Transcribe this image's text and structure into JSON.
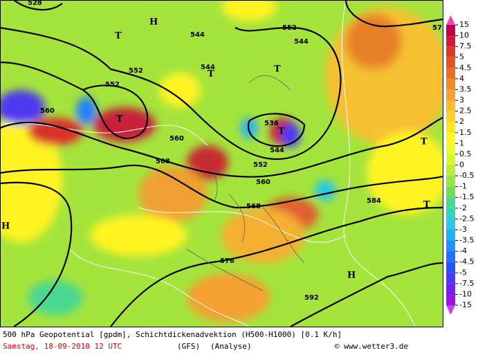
{
  "map": {
    "colorbar": {
      "levels": [
        15,
        10,
        7.5,
        5,
        4.5,
        4,
        3.5,
        3,
        2.5,
        2,
        1.5,
        1,
        0.5,
        0,
        -0.5,
        -1,
        -1.5,
        -2,
        -2.5,
        -3,
        -3.5,
        -4,
        -4.5,
        -5,
        -7.5,
        -10,
        -15
      ],
      "colors": [
        "#c0004a",
        "#d01c38",
        "#dc3828",
        "#e45420",
        "#ea7020",
        "#f08c28",
        "#f5a430",
        "#f9bc30",
        "#fcd028",
        "#ffe420",
        "#fff424",
        "#f0fa28",
        "#d8f630",
        "#b8ee38",
        "#98e440",
        "#70dc58",
        "#48d890",
        "#30d4c0",
        "#28c8e8",
        "#20b0ff",
        "#2090ff",
        "#2070ff",
        "#2850ff",
        "#4838f8",
        "#7020f0",
        "#a010e8"
      ],
      "top_color": "#ff40b0",
      "bottom_color": "#c040f0"
    },
    "contour_labels": [
      "552",
      "552",
      "552",
      "552",
      "544",
      "544",
      "544",
      "544",
      "536",
      "528",
      "560",
      "560",
      "560",
      "568",
      "568",
      "576",
      "584",
      "592",
      "57"
    ],
    "centers": [
      "H",
      "H",
      "H",
      "T",
      "T",
      "T",
      "T",
      "T",
      "T",
      "T"
    ],
    "footer": {
      "caption": "500 hPa Geopotential [gpdm], Schichtdickenadvektion (H500-H1000) [0.1 K/h]",
      "date": "Samstag, 18-09-2010  12 UTC",
      "model": "(GFS)",
      "run": "(Analyse)",
      "credit": "© www.wetter3.de"
    }
  }
}
